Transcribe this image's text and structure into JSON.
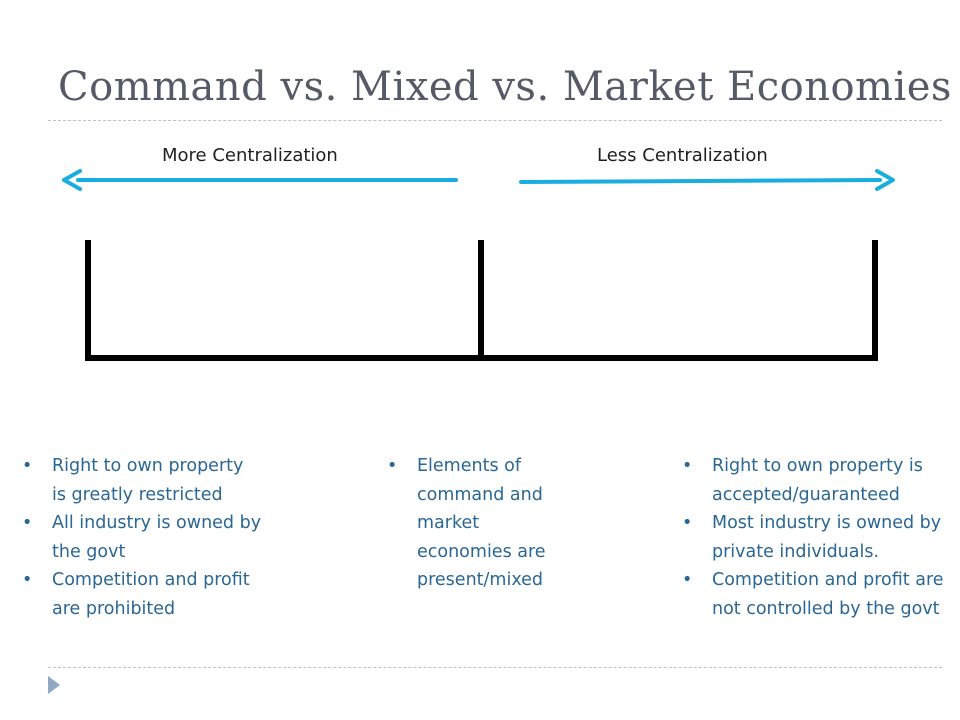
{
  "slide": {
    "title": "Command vs. Mixed vs. Market Economies"
  },
  "spectrum": {
    "left_label": "More Centralization",
    "right_label": "Less Centralization",
    "arrow_color": "#1aaee0"
  },
  "columns": {
    "command": [
      "Right to own property is greatly restricted",
      "All industry is owned by the govt",
      "Competition and profit are prohibited"
    ],
    "mixed": [
      "Elements of command and market economies are present/mixed"
    ],
    "market": [
      "Right to own property is accepted/guaranteed",
      "Most industry is owned by private individuals.",
      "Competition and profit are not controlled by the govt"
    ]
  },
  "colors": {
    "title": "#555a66",
    "bullet_text": "#2a6794",
    "scale": "#000000",
    "divider": "#b9c3cc",
    "nav_arrow": "#8fa8c4"
  },
  "icons": {
    "nav": "triangle-right-icon"
  }
}
